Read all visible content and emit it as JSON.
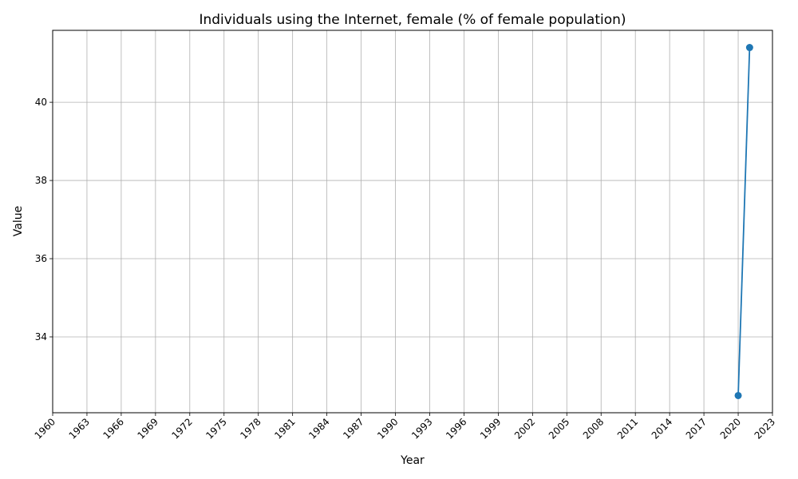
{
  "chart_data": {
    "type": "line",
    "title": "Individuals using the Internet, female (% of female population)",
    "xlabel": "Year",
    "ylabel": "Value",
    "x_ticks": [
      1960,
      1963,
      1966,
      1969,
      1972,
      1975,
      1978,
      1981,
      1984,
      1987,
      1990,
      1993,
      1996,
      1999,
      2002,
      2005,
      2008,
      2011,
      2014,
      2017,
      2020,
      2023
    ],
    "y_ticks": [
      34,
      36,
      38,
      40
    ],
    "xlim": [
      1960,
      2023
    ],
    "ylim": [
      32.06,
      41.84
    ],
    "grid": true,
    "series": [
      {
        "color": "#1f77b4",
        "marker": "circle",
        "points": [
          {
            "x": 2020,
            "y": 32.5
          },
          {
            "x": 2021,
            "y": 41.4
          }
        ]
      }
    ]
  }
}
